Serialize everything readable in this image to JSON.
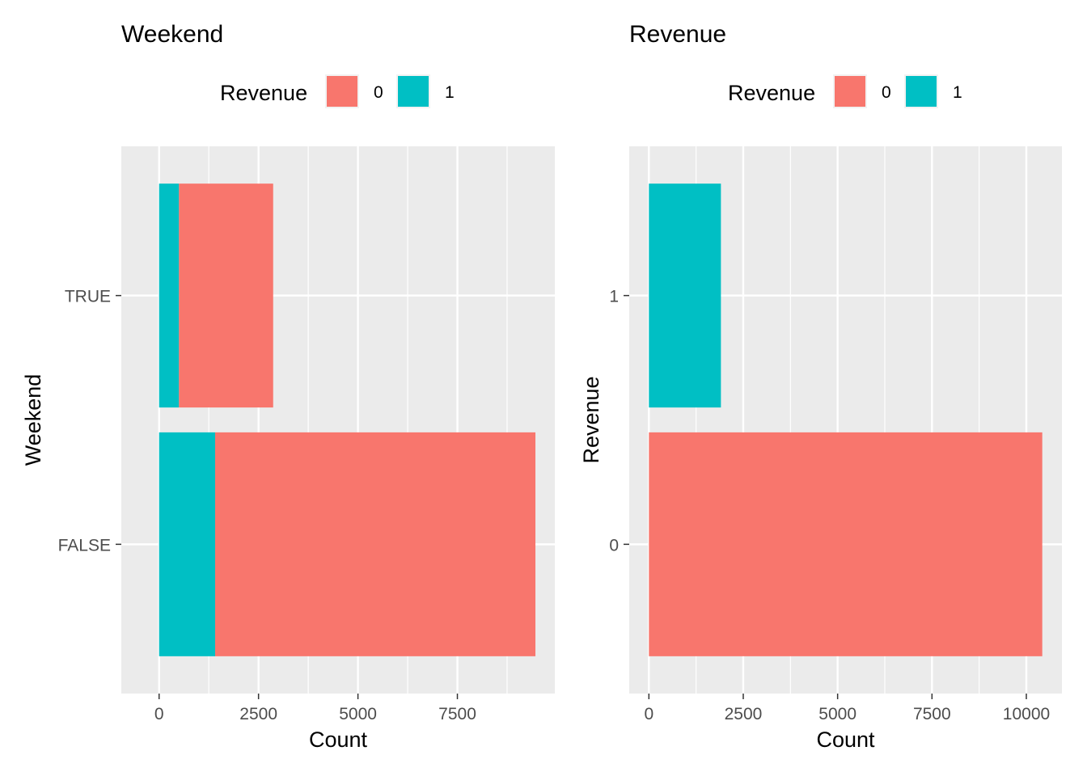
{
  "colors": {
    "revenue_0": "#F8766D",
    "revenue_1": "#00BFC4",
    "panel_bg": "#EBEBEB",
    "grid": "#FFFFFF",
    "tick_text": "#4D4D4D"
  },
  "chart_data": [
    {
      "type": "bar",
      "orientation": "horizontal",
      "stacked": true,
      "title": "Weekend",
      "xlabel": "Count",
      "ylabel": "Weekend",
      "categories": [
        "FALSE",
        "TRUE"
      ],
      "series": [
        {
          "name": "1",
          "values": [
            1409,
            499
          ]
        },
        {
          "name": "0",
          "values": [
            8053,
            2369
          ]
        }
      ],
      "legend": {
        "title": "Revenue",
        "entries": [
          "0",
          "1"
        ],
        "position": "top"
      },
      "xlim": [
        -950,
        9950
      ],
      "xticks": [
        0,
        2500,
        5000,
        7500
      ],
      "grid": true
    },
    {
      "type": "bar",
      "orientation": "horizontal",
      "stacked": true,
      "title": "Revenue",
      "xlabel": "Count",
      "ylabel": "Revenue",
      "categories": [
        "0",
        "1"
      ],
      "series": [
        {
          "name": "1",
          "values": [
            0,
            1908
          ]
        },
        {
          "name": "0",
          "values": [
            10422,
            0
          ]
        }
      ],
      "legend": {
        "title": "Revenue",
        "entries": [
          "0",
          "1"
        ],
        "position": "top"
      },
      "xlim": [
        -521,
        10943
      ],
      "xticks": [
        0,
        2500,
        5000,
        7500,
        10000
      ],
      "grid": true
    }
  ]
}
